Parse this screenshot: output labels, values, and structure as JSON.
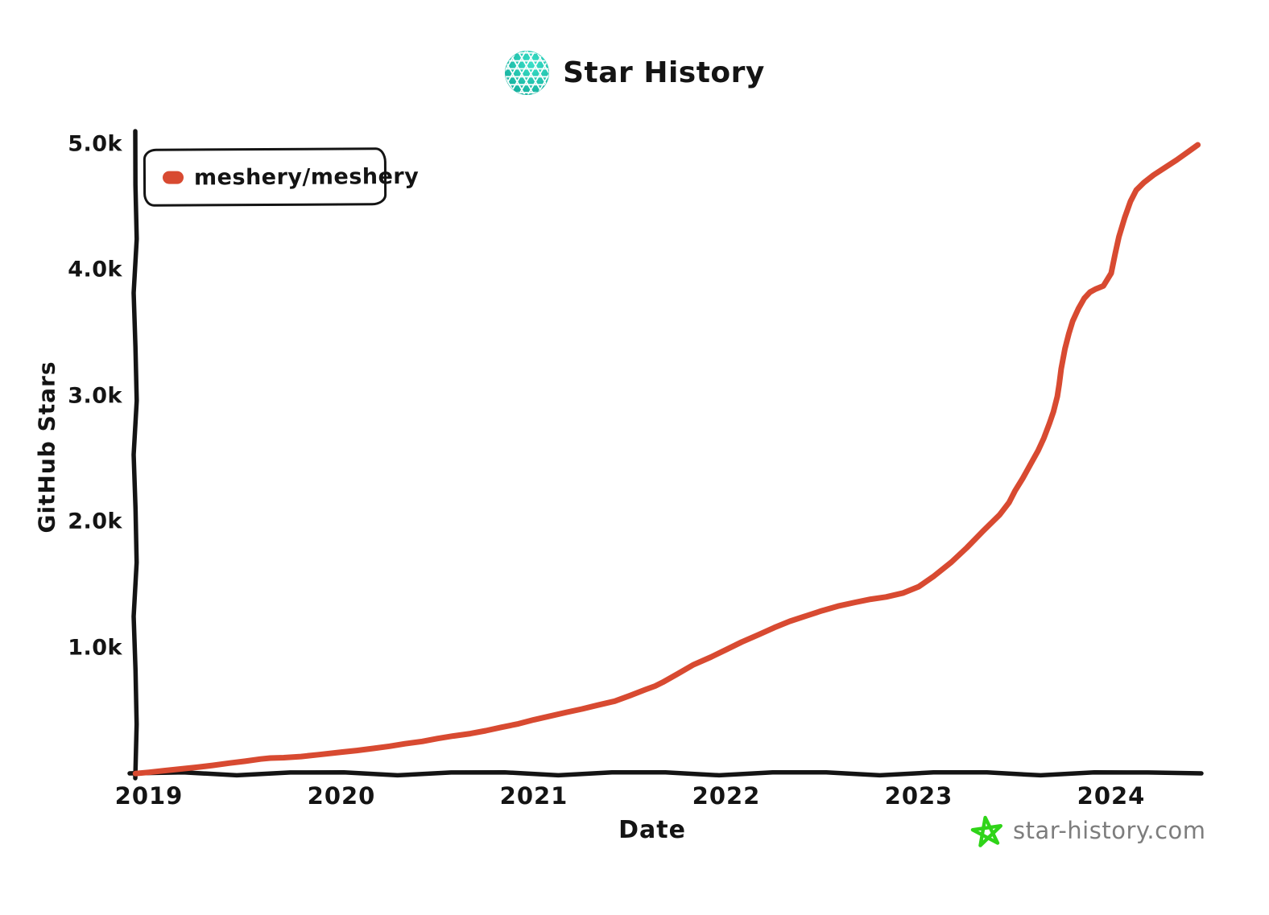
{
  "header": {
    "title": "Star History"
  },
  "legend": {
    "items": [
      {
        "label": "meshery/meshery",
        "color": "#d84a31"
      }
    ]
  },
  "axes": {
    "y_title": "GitHub Stars",
    "x_title": "Date"
  },
  "footer": {
    "site": "star-history.com",
    "star_color": "#2fd418",
    "text_color": "#7d7d7d"
  },
  "colors": {
    "series_red": "#d84a31",
    "axis_black": "#141414",
    "logo_teal_dark": "#0ca392",
    "logo_teal_light": "#3ae0c8"
  },
  "chart_data": {
    "type": "line",
    "title": "Star History",
    "xlabel": "Date",
    "ylabel": "GitHub Stars",
    "grid": false,
    "legend_position": "top-left",
    "xlim": [
      2018.93,
      2024.5
    ],
    "ylim": [
      0,
      5000
    ],
    "x_ticks": [
      {
        "label": "2019",
        "value": 2019
      },
      {
        "label": "2020",
        "value": 2020
      },
      {
        "label": "2021",
        "value": 2021
      },
      {
        "label": "2022",
        "value": 2022
      },
      {
        "label": "2023",
        "value": 2023
      },
      {
        "label": "2024",
        "value": 2024
      }
    ],
    "y_ticks": [
      {
        "label": "1.0k",
        "value": 1000
      },
      {
        "label": "2.0k",
        "value": 2000
      },
      {
        "label": "3.0k",
        "value": 3000
      },
      {
        "label": "4.0k",
        "value": 4000
      },
      {
        "label": "5.0k",
        "value": 5000
      }
    ],
    "series": [
      {
        "name": "meshery/meshery",
        "color": "#d84a31",
        "points": [
          [
            2018.93,
            5
          ],
          [
            2019.0,
            15
          ],
          [
            2019.08,
            28
          ],
          [
            2019.17,
            42
          ],
          [
            2019.25,
            55
          ],
          [
            2019.33,
            70
          ],
          [
            2019.42,
            88
          ],
          [
            2019.5,
            103
          ],
          [
            2019.58,
            120
          ],
          [
            2019.63,
            128
          ],
          [
            2019.7,
            131
          ],
          [
            2019.79,
            140
          ],
          [
            2019.88,
            155
          ],
          [
            2020.0,
            175
          ],
          [
            2020.08,
            188
          ],
          [
            2020.17,
            205
          ],
          [
            2020.25,
            222
          ],
          [
            2020.33,
            242
          ],
          [
            2020.42,
            260
          ],
          [
            2020.5,
            283
          ],
          [
            2020.58,
            303
          ],
          [
            2020.67,
            322
          ],
          [
            2020.75,
            345
          ],
          [
            2020.83,
            372
          ],
          [
            2020.92,
            400
          ],
          [
            2021.0,
            432
          ],
          [
            2021.08,
            460
          ],
          [
            2021.17,
            492
          ],
          [
            2021.25,
            518
          ],
          [
            2021.33,
            548
          ],
          [
            2021.42,
            580
          ],
          [
            2021.5,
            625
          ],
          [
            2021.58,
            672
          ],
          [
            2021.63,
            700
          ],
          [
            2021.67,
            730
          ],
          [
            2021.75,
            800
          ],
          [
            2021.83,
            870
          ],
          [
            2021.92,
            930
          ],
          [
            2022.0,
            990
          ],
          [
            2022.08,
            1050
          ],
          [
            2022.17,
            1110
          ],
          [
            2022.25,
            1165
          ],
          [
            2022.33,
            1215
          ],
          [
            2022.42,
            1260
          ],
          [
            2022.5,
            1300
          ],
          [
            2022.58,
            1335
          ],
          [
            2022.67,
            1365
          ],
          [
            2022.75,
            1390
          ],
          [
            2022.83,
            1408
          ],
          [
            2022.92,
            1440
          ],
          [
            2023.0,
            1490
          ],
          [
            2023.08,
            1575
          ],
          [
            2023.17,
            1685
          ],
          [
            2023.25,
            1800
          ],
          [
            2023.33,
            1925
          ],
          [
            2023.42,
            2060
          ],
          [
            2023.47,
            2160
          ],
          [
            2023.5,
            2250
          ],
          [
            2023.54,
            2350
          ],
          [
            2023.58,
            2460
          ],
          [
            2023.62,
            2570
          ],
          [
            2023.65,
            2670
          ],
          [
            2023.68,
            2790
          ],
          [
            2023.7,
            2880
          ],
          [
            2023.72,
            3000
          ],
          [
            2023.73,
            3100
          ],
          [
            2023.74,
            3220
          ],
          [
            2023.76,
            3380
          ],
          [
            2023.78,
            3500
          ],
          [
            2023.8,
            3600
          ],
          [
            2023.83,
            3700
          ],
          [
            2023.86,
            3780
          ],
          [
            2023.89,
            3830
          ],
          [
            2023.92,
            3855
          ],
          [
            2023.96,
            3880
          ],
          [
            2024.0,
            3980
          ],
          [
            2024.02,
            4130
          ],
          [
            2024.04,
            4270
          ],
          [
            2024.07,
            4420
          ],
          [
            2024.1,
            4550
          ],
          [
            2024.13,
            4640
          ],
          [
            2024.17,
            4700
          ],
          [
            2024.22,
            4760
          ],
          [
            2024.28,
            4820
          ],
          [
            2024.34,
            4880
          ],
          [
            2024.4,
            4945
          ],
          [
            2024.45,
            5000
          ]
        ]
      }
    ]
  }
}
